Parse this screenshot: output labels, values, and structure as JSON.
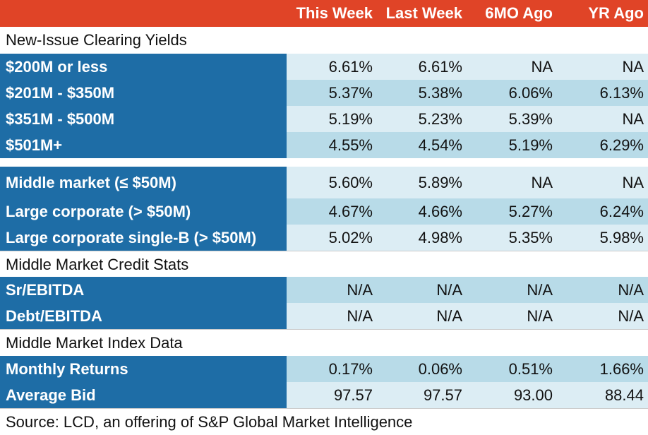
{
  "header": {
    "label_col": "",
    "columns": [
      "This Week",
      "Last Week",
      "6MO Ago",
      "YR Ago"
    ]
  },
  "sections": {
    "new_issue": {
      "title": "New-Issue Clearing Yields",
      "rows": [
        {
          "label": "$200M or less",
          "values": [
            "6.61%",
            "6.61%",
            "NA",
            "NA"
          ]
        },
        {
          "label": "$201M - $350M",
          "values": [
            "5.37%",
            "5.38%",
            "6.06%",
            "6.13%"
          ]
        },
        {
          "label": "$351M - $500M",
          "values": [
            "5.19%",
            "5.23%",
            "5.39%",
            "NA"
          ]
        },
        {
          "label": "$501M+",
          "values": [
            "4.55%",
            "4.54%",
            "5.19%",
            "6.29%"
          ]
        }
      ]
    },
    "segments": {
      "rows": [
        {
          "label": "Middle market (≤ $50M)",
          "values": [
            "5.60%",
            "5.89%",
            "NA",
            "NA"
          ]
        },
        {
          "label": "Large corporate (> $50M)",
          "values": [
            "4.67%",
            "4.66%",
            "5.27%",
            "6.24%"
          ]
        },
        {
          "label": "Large corporate single-B (> $50M)",
          "values": [
            "5.02%",
            "4.98%",
            "5.35%",
            "5.98%"
          ]
        }
      ]
    },
    "credit_stats": {
      "title": "Middle Market Credit Stats",
      "rows": [
        {
          "label": "Sr/EBITDA",
          "values": [
            "N/A",
            "N/A",
            "N/A",
            "N/A"
          ]
        },
        {
          "label": "Debt/EBITDA",
          "values": [
            "N/A",
            "N/A",
            "N/A",
            "N/A"
          ]
        }
      ]
    },
    "index_data": {
      "title": "Middle Market Index Data",
      "rows": [
        {
          "label": "Monthly Returns",
          "values": [
            "0.17%",
            "0.06%",
            "0.51%",
            "1.66%"
          ]
        },
        {
          "label": "Average Bid",
          "values": [
            "97.57",
            "97.57",
            "93.00",
            "88.44"
          ]
        }
      ]
    }
  },
  "source": "Source: LCD, an offering of S&P Global Market Intelligence",
  "chart_data": {
    "type": "table",
    "columns": [
      "This Week",
      "Last Week",
      "6MO Ago",
      "YR Ago"
    ],
    "rows": [
      {
        "label": "$200M or less",
        "values": [
          "6.61%",
          "6.61%",
          "NA",
          "NA"
        ]
      },
      {
        "label": "$201M - $350M",
        "values": [
          "5.37%",
          "5.38%",
          "6.06%",
          "6.13%"
        ]
      },
      {
        "label": "$351M - $500M",
        "values": [
          "5.19%",
          "5.23%",
          "5.39%",
          "NA"
        ]
      },
      {
        "label": "$501M+",
        "values": [
          "4.55%",
          "4.54%",
          "5.19%",
          "6.29%"
        ]
      },
      {
        "label": "Middle market (≤ $50M)",
        "values": [
          "5.60%",
          "5.89%",
          "NA",
          "NA"
        ]
      },
      {
        "label": "Large corporate (> $50M)",
        "values": [
          "4.67%",
          "4.66%",
          "5.27%",
          "6.24%"
        ]
      },
      {
        "label": "Large corporate single-B (> $50M)",
        "values": [
          "5.02%",
          "4.98%",
          "5.35%",
          "5.98%"
        ]
      },
      {
        "label": "Sr/EBITDA",
        "values": [
          "N/A",
          "N/A",
          "N/A",
          "N/A"
        ]
      },
      {
        "label": "Debt/EBITDA",
        "values": [
          "N/A",
          "N/A",
          "N/A",
          "N/A"
        ]
      },
      {
        "label": "Monthly Returns",
        "values": [
          "0.17%",
          "0.06%",
          "0.51%",
          "1.66%"
        ]
      },
      {
        "label": "Average Bid",
        "values": [
          "97.57",
          "97.57",
          "93.00",
          "88.44"
        ]
      }
    ],
    "colors": {
      "header": "#e04427",
      "label_bg": "#1e6da6",
      "row_light": "#dcedf4",
      "row_dark": "#b8dbe8"
    }
  }
}
